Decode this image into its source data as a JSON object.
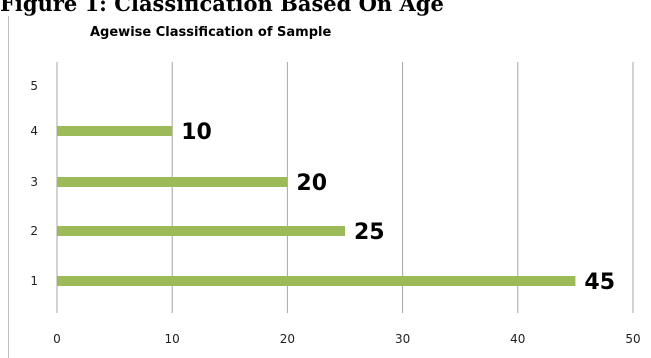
{
  "caption": "Figure 1: Classification Based On Age",
  "chart_data": {
    "type": "bar",
    "orientation": "horizontal",
    "title": "Agewise  Classification of Sample",
    "xlabel": "",
    "ylabel": "",
    "categories": [
      "1",
      "2",
      "3",
      "4",
      "5"
    ],
    "values": [
      45,
      25,
      20,
      10,
      null
    ],
    "data_labels": [
      "45",
      "25",
      "20",
      "10",
      ""
    ],
    "xlim": [
      0,
      50
    ],
    "x_ticks": [
      0,
      10,
      20,
      30,
      40,
      50
    ],
    "grid": "vertical",
    "legend": "none",
    "bar_color": "#9bbb59"
  }
}
